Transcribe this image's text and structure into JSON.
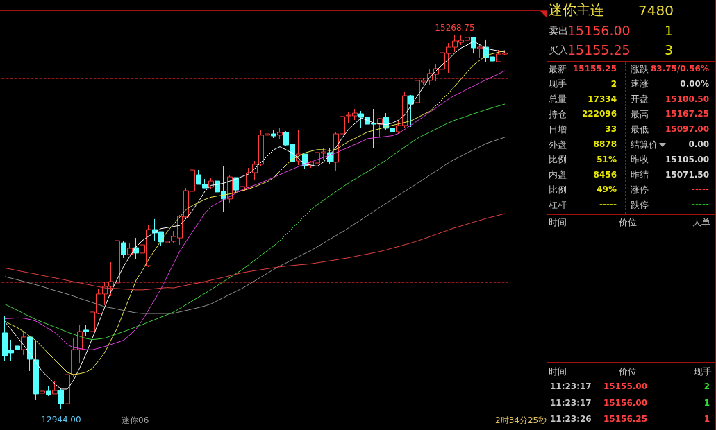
{
  "chart_data": [
    {
      "type": "candlestick",
      "categories": [
        null,
        null,
        null,
        null,
        null,
        null,
        null,
        null,
        null,
        null,
        null,
        null,
        null,
        null,
        null,
        null,
        null,
        null,
        null,
        null,
        null,
        null,
        null,
        null,
        null,
        null,
        null,
        null,
        null,
        null,
        null,
        null,
        null,
        null,
        null,
        null,
        null,
        null,
        null,
        null,
        null,
        null,
        null,
        null,
        null,
        null,
        null,
        null,
        null,
        null,
        null,
        null,
        null,
        null,
        null,
        null,
        null,
        null,
        null,
        null,
        null,
        null,
        null,
        null,
        null,
        null,
        null,
        null,
        null,
        null,
        null,
        null,
        null,
        null,
        null,
        null,
        null,
        null,
        null,
        null,
        null
      ],
      "ohlc": [
        [
          13418,
          13525,
          13245,
          13275
        ],
        [
          13310,
          13375,
          13245,
          13293
        ],
        [
          13336,
          13344,
          13267,
          13314
        ],
        [
          13314,
          13426,
          13280,
          13392
        ],
        [
          13392,
          13400,
          13181,
          13254
        ],
        [
          13250,
          13366,
          13000,
          13039
        ],
        [
          13043,
          13095,
          12987,
          13056
        ],
        [
          13056,
          13090,
          13026,
          13034
        ],
        [
          13039,
          13121,
          13039,
          13060
        ],
        [
          13060,
          13073,
          12944,
          12978
        ],
        [
          12978,
          13189,
          12974,
          13159
        ],
        [
          13159,
          13383,
          13146,
          13314
        ],
        [
          13314,
          13469,
          13232,
          13426
        ],
        [
          13435,
          13469,
          13400,
          13426
        ],
        [
          13426,
          13577,
          13418,
          13547
        ],
        [
          13538,
          13689,
          13534,
          13659
        ],
        [
          13659,
          13732,
          13590,
          13706
        ],
        [
          13706,
          13857,
          13646,
          13736
        ],
        [
          13728,
          14016,
          13448,
          13990
        ],
        [
          13977,
          13986,
          13883,
          13904
        ],
        [
          13904,
          13973,
          13900,
          13943
        ],
        [
          13947,
          14007,
          13878,
          13913
        ],
        [
          13913,
          13977,
          13805,
          13964
        ],
        [
          13835,
          14085,
          13827,
          14059
        ],
        [
          14059,
          14124,
          13990,
          14038
        ],
        [
          14046,
          14046,
          13956,
          13982
        ],
        [
          13977,
          13990,
          13956,
          13986
        ],
        [
          13986,
          14050,
          13977,
          14016
        ],
        [
          14007,
          14149,
          13964,
          14141
        ],
        [
          14137,
          14317,
          14128,
          14300
        ],
        [
          14296,
          14438,
          14270,
          14429
        ],
        [
          14399,
          14429,
          14339,
          14339
        ],
        [
          14339,
          14373,
          14317,
          14317
        ],
        [
          14322,
          14378,
          14309,
          14360
        ],
        [
          14360,
          14459,
          14279,
          14292
        ],
        [
          14296,
          14451,
          14171,
          14249
        ],
        [
          14249,
          14395,
          14223,
          14386
        ],
        [
          14382,
          14382,
          14287,
          14304
        ],
        [
          14300,
          14335,
          14287,
          14326
        ],
        [
          14322,
          14442,
          14313,
          14412
        ],
        [
          14412,
          14485,
          14365,
          14464
        ],
        [
          14464,
          14679,
          14451,
          14645
        ],
        [
          14645,
          14683,
          14589,
          14653
        ],
        [
          14653,
          14675,
          14627,
          14640
        ],
        [
          14645,
          14688,
          14623,
          14662
        ],
        [
          14662,
          14670,
          14576,
          14584
        ],
        [
          14589,
          14589,
          14451,
          14481
        ],
        [
          14485,
          14679,
          14459,
          14528
        ],
        [
          14528,
          14528,
          14434,
          14455
        ],
        [
          14455,
          14485,
          14442,
          14477
        ],
        [
          14472,
          14546,
          14464,
          14537
        ],
        [
          14533,
          14563,
          14494,
          14541
        ],
        [
          14537,
          14567,
          14464,
          14481
        ],
        [
          14477,
          14666,
          14425,
          14653
        ],
        [
          14653,
          14765,
          14623,
          14761
        ],
        [
          14765,
          14787,
          14718,
          14769
        ],
        [
          14765,
          14808,
          14739,
          14782
        ],
        [
          14778,
          14795,
          14688,
          14756
        ],
        [
          14756,
          14843,
          14679,
          14713
        ],
        [
          14718,
          14808,
          14567,
          14713
        ],
        [
          14713,
          14752,
          14632,
          14748
        ],
        [
          14756,
          14782,
          14679,
          14688
        ],
        [
          14688,
          14713,
          14662,
          14666
        ],
        [
          14666,
          14731,
          14653,
          14705
        ],
        [
          14705,
          14911,
          14688,
          14890
        ],
        [
          14890,
          14894,
          14696,
          14838
        ],
        [
          14847,
          14998,
          14838,
          14985
        ],
        [
          14976,
          14998,
          14959,
          14985
        ],
        [
          14985,
          15054,
          14959,
          15028
        ],
        [
          15023,
          15088,
          14980,
          15058
        ],
        [
          15054,
          15226,
          15010,
          15157
        ],
        [
          15152,
          15217,
          15032,
          15191
        ],
        [
          15191,
          15268.75,
          15161,
          15230
        ],
        [
          15221,
          15264,
          15204,
          15234
        ],
        [
          15234,
          15256,
          15213,
          15252
        ],
        [
          15252,
          15256,
          15152,
          15187
        ],
        [
          15183,
          15213,
          15127,
          15191
        ],
        [
          15191,
          15239,
          15097,
          15127
        ],
        [
          15131,
          15131,
          15010,
          15105
        ],
        [
          15101,
          15174,
          15097,
          15148
        ],
        [
          15148,
          15170,
          15140,
          15155.25
        ]
      ],
      "series": [
        {
          "type": "line",
          "color": "#ffffff",
          "values": [
            13487,
            13439,
            13391,
            13342,
            13291,
            13233,
            13177,
            13141,
            13102,
            13069,
            13069,
            13125,
            13202,
            13289,
            13385,
            13482,
            13579,
            13676,
            13753,
            13831,
            13893,
            13951,
            13991,
            14017,
            14043,
            14065,
            14071,
            14078,
            14084,
            14128,
            14176,
            14234,
            14296,
            14333,
            14339,
            14346,
            14360,
            14373,
            14389,
            14404,
            14438,
            14477,
            14515,
            14554,
            14573,
            14554,
            14533,
            14500,
            14467,
            14459,
            14452,
            14479,
            14522,
            14571,
            14630,
            14682,
            14717,
            14752,
            14737,
            14721,
            14715,
            14711,
            14720,
            14739,
            14771,
            14830,
            14888,
            14946,
            15004,
            15045,
            15084,
            15116,
            15155,
            15186,
            15205,
            15229,
            15206,
            15183,
            15175,
            15168,
            15161
          ]
        },
        {
          "type": "line",
          "color": "#e8e850",
          "values": [
            13489,
            13469,
            13450,
            13426,
            13397,
            13369,
            13330,
            13288,
            13250,
            13211,
            13172,
            13159,
            13165,
            13174,
            13197,
            13245,
            13297,
            13375,
            13450,
            13547,
            13644,
            13745,
            13805,
            13874,
            13932,
            13990,
            14047,
            14092,
            14137,
            14183,
            14208,
            14227,
            14246,
            14260,
            14267,
            14273,
            14280,
            14290,
            14301,
            14311,
            14325,
            14341,
            14356,
            14382,
            14421,
            14459,
            14496,
            14515,
            14535,
            14546,
            14555,
            14555,
            14549,
            14557,
            14582,
            14606,
            14625,
            14645,
            14664,
            14675,
            14685,
            14696,
            14706,
            14715,
            14724,
            14735,
            14754,
            14774,
            14793,
            14830,
            14868,
            14907,
            14949,
            14995,
            15040,
            15082,
            15110,
            15140,
            15150,
            15160,
            15170
          ]
        },
        {
          "type": "line",
          "color": "#e040e0",
          "values": [
            13506,
            13508,
            13511,
            13509,
            13501,
            13490,
            13467,
            13443,
            13420,
            13383,
            13344,
            13327,
            13321,
            13314,
            13313,
            13323,
            13333,
            13346,
            13359,
            13372,
            13405,
            13443,
            13496,
            13561,
            13626,
            13693,
            13771,
            13848,
            13926,
            13986,
            14044,
            14102,
            14160,
            14202,
            14223,
            14244,
            14264,
            14285,
            14307,
            14321,
            14335,
            14350,
            14366,
            14383,
            14400,
            14417,
            14434,
            14451,
            14465,
            14479,
            14493,
            14507,
            14521,
            14536,
            14553,
            14570,
            14587,
            14604,
            14623,
            14628,
            14632,
            14637,
            14642,
            14656,
            14682,
            14708,
            14734,
            14761,
            14788,
            14815,
            14842,
            14869,
            14892,
            14911,
            14931,
            14950,
            14970,
            14989,
            15007,
            15026,
            15045
          ]
        },
        {
          "type": "line",
          "color": "#40d040",
          "values": [
            13596,
            13577,
            13558,
            13538,
            13519,
            13500,
            13485,
            13469,
            13454,
            13438,
            13423,
            13409,
            13396,
            13383,
            13376,
            13380,
            13385,
            13399,
            13412,
            13426,
            13440,
            13455,
            13469,
            13485,
            13500,
            13516,
            13531,
            13547,
            13570,
            13593,
            13617,
            13640,
            13663,
            13687,
            13712,
            13737,
            13761,
            13786,
            13811,
            13840,
            13869,
            13899,
            13928,
            13957,
            13990,
            14029,
            14068,
            14106,
            14145,
            14184,
            14214,
            14241,
            14268,
            14295,
            14322,
            14348,
            14372,
            14395,
            14418,
            14441,
            14465,
            14490,
            14518,
            14545,
            14572,
            14599,
            14625,
            14645,
            14664,
            14683,
            14703,
            14722,
            14738,
            14751,
            14764,
            14778,
            14790,
            14804,
            14815,
            14827,
            14838
          ]
        },
        {
          "type": "line",
          "color": "#909090",
          "values": [
            13767,
            13757,
            13747,
            13737,
            13727,
            13716,
            13705,
            13693,
            13681,
            13670,
            13658,
            13646,
            13632,
            13619,
            13606,
            13593,
            13580,
            13573,
            13565,
            13557,
            13549,
            13542,
            13538,
            13538,
            13538,
            13538,
            13538,
            13538,
            13548,
            13557,
            13566,
            13575,
            13585,
            13598,
            13618,
            13637,
            13657,
            13676,
            13695,
            13718,
            13741,
            13765,
            13788,
            13811,
            13833,
            13852,
            13872,
            13891,
            13911,
            13930,
            13952,
            13976,
            13999,
            14022,
            14045,
            14069,
            14095,
            14120,
            14146,
            14171,
            14197,
            14222,
            14247,
            14272,
            14296,
            14321,
            14346,
            14372,
            14397,
            14423,
            14448,
            14474,
            14496,
            14515,
            14535,
            14554,
            14573,
            14593,
            14606,
            14619,
            14632
          ]
        },
        {
          "type": "line",
          "color": "#e04040",
          "values": [
            13820,
            13813,
            13805,
            13797,
            13790,
            13782,
            13774,
            13766,
            13759,
            13751,
            13743,
            13735,
            13728,
            13720,
            13712,
            13704,
            13697,
            13695,
            13693,
            13690,
            13688,
            13685,
            13685,
            13688,
            13692,
            13696,
            13699,
            13697,
            13705,
            13713,
            13721,
            13728,
            13736,
            13745,
            13754,
            13763,
            13772,
            13782,
            13791,
            13798,
            13804,
            13810,
            13816,
            13822,
            13828,
            13832,
            13836,
            13840,
            13843,
            13847,
            13853,
            13859,
            13865,
            13871,
            13878,
            13884,
            13892,
            13900,
            13907,
            13915,
            13923,
            13933,
            13944,
            13954,
            13965,
            13976,
            13988,
            14001,
            14015,
            14029,
            14043,
            14057,
            14070,
            14081,
            14093,
            14105,
            14116,
            14128,
            14138,
            14148,
            14158
          ]
        }
      ],
      "ref_lines": [
        {
          "axis": "y",
          "value": 14998,
          "color": "#8b1a1a",
          "line_style": "dashed"
        },
        {
          "axis": "y",
          "value": 13732,
          "color": "#8b1a1a",
          "line_style": "dashed"
        }
      ],
      "annotations": [
        {
          "text": "15268.75",
          "y": 15268.75
        },
        {
          "text": "12944.00",
          "y": 12944
        },
        "迷你06",
        "2时34分25秒"
      ],
      "tick_labels": false
    },
    {
      "type": "other",
      "title": "迷你主连",
      "subtitle": "7480",
      "annotations": [
        "卖出",
        "15156.00",
        "1",
        "买入",
        "15155.25",
        "3",
        "最新",
        "15155.25",
        "涨跌",
        "83.75/0.56%",
        "现手",
        "2",
        "速涨",
        "0.00%",
        "总量",
        "17334",
        "开盘",
        "15100.50",
        "持仓",
        "222096",
        "最高",
        "15167.25",
        "日增",
        "33",
        "最低",
        "15097.00",
        "外盘",
        "8878",
        "结算价",
        "0.00",
        "比例",
        "51%",
        "昨收",
        "15105.00",
        "内盘",
        "8456",
        "昨结",
        "15071.50",
        "比例",
        "49%",
        "涨停",
        "-----",
        "杠杆",
        "-----",
        "跌停",
        "-----",
        "时间",
        "价位",
        "大单",
        "时间",
        "价位",
        "现手",
        "11:23:17",
        "15155.00",
        "2",
        "11:23:17",
        "15156.00",
        "1",
        "11:23:26",
        "15156.25",
        "1"
      ]
    }
  ]
}
